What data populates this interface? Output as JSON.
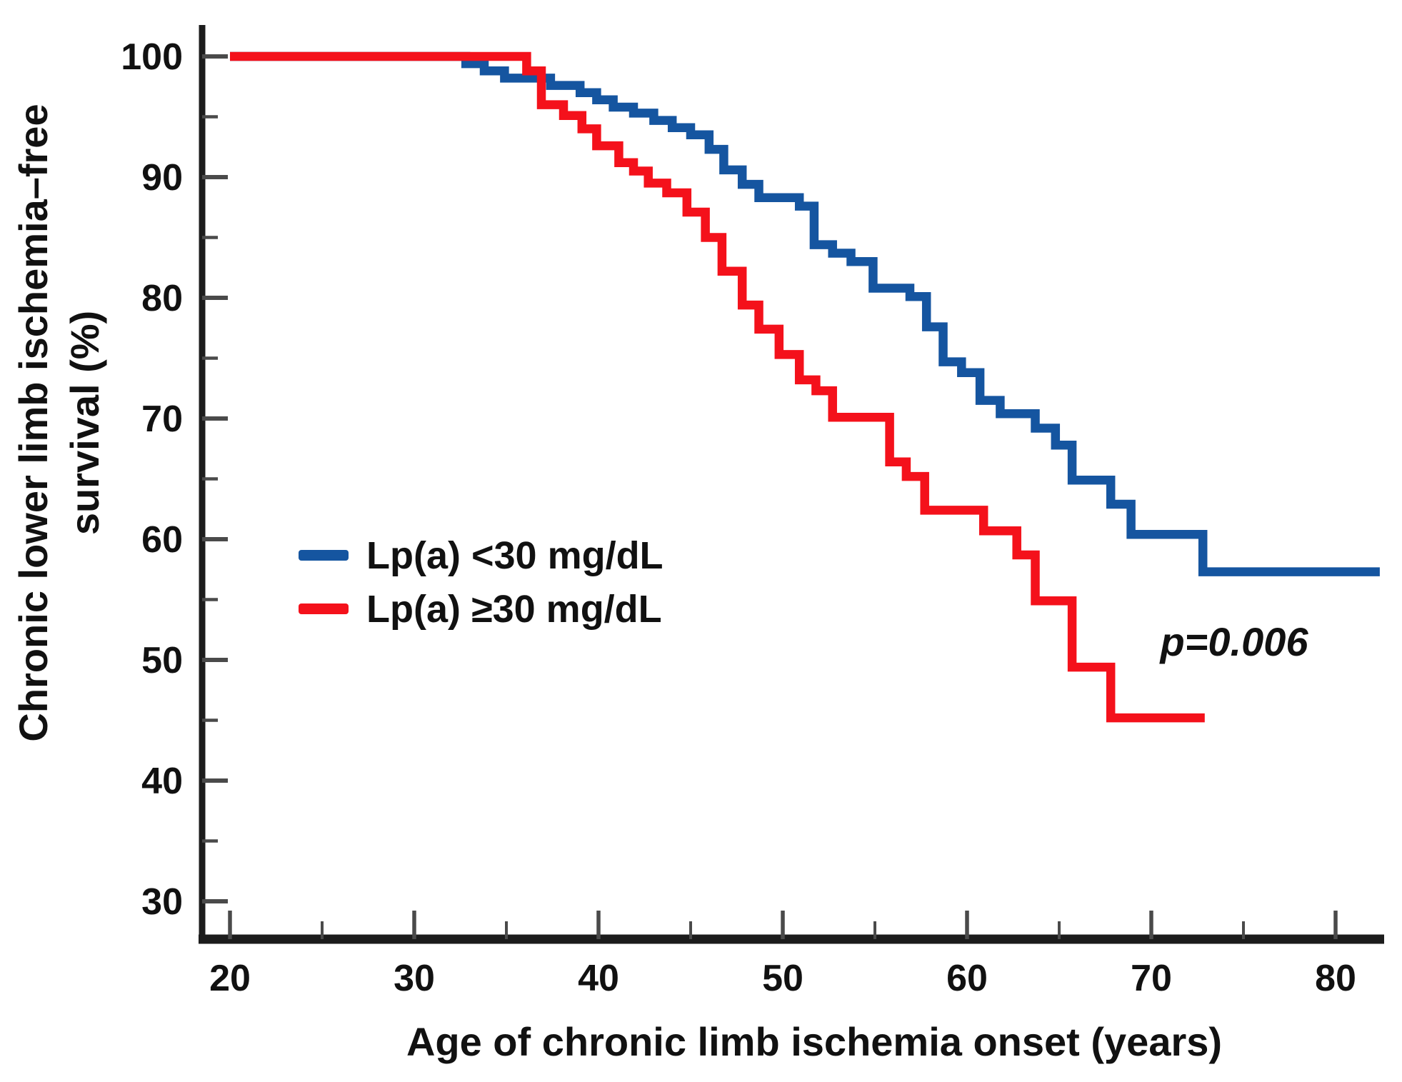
{
  "figure": {
    "y_axis_title_line1": "Chronic lower limb ischemia–free",
    "y_axis_title_line2": "survival (%)",
    "x_axis_title": "Age of chronic limb ischemia onset (years)",
    "p_value_label": "p=0.006"
  },
  "legend": {
    "position": "center-left",
    "items": [
      {
        "label": "Lp(a) <30 mg/dL",
        "color": "#1555A0"
      },
      {
        "label": "Lp(a) ≥30 mg/dL",
        "color": "#F4111B"
      }
    ]
  },
  "chart_data": {
    "type": "line",
    "subtype": "kaplan-meier-step",
    "title": "",
    "xlabel": "Age of chronic limb ischemia onset (years)",
    "ylabel": "Chronic lower limb ischemia–free survival (%)",
    "grid": false,
    "x_axis": {
      "range": [
        20,
        80
      ],
      "ticks_major": [
        20,
        30,
        40,
        50,
        60,
        70,
        80
      ],
      "ticks_minor": [
        25,
        35,
        45,
        55,
        65,
        75
      ]
    },
    "y_axis": {
      "range": [
        30,
        100
      ],
      "ticks_major": [
        100,
        90,
        80,
        70,
        60,
        50,
        40,
        30
      ],
      "ticks_minor": [
        95,
        85,
        75,
        65,
        55,
        45,
        35
      ]
    },
    "annotations": [
      {
        "text": "p=0.006",
        "x": 66,
        "y": 51
      }
    ],
    "series": [
      {
        "name": "Lp(a) <30 mg/dL",
        "color": "#1555A0",
        "end_age": 82.4,
        "points": [
          [
            20,
            100
          ],
          [
            32.8,
            99.4
          ],
          [
            33.8,
            98.8
          ],
          [
            34.9,
            98.2
          ],
          [
            37.4,
            97.6
          ],
          [
            39.0,
            97.0
          ],
          [
            39.9,
            96.4
          ],
          [
            40.8,
            95.8
          ],
          [
            41.9,
            95.3
          ],
          [
            43.0,
            94.7
          ],
          [
            44.0,
            94.1
          ],
          [
            45.0,
            93.5
          ],
          [
            46.0,
            92.3
          ],
          [
            46.8,
            90.6
          ],
          [
            47.8,
            89.4
          ],
          [
            48.7,
            88.3
          ],
          [
            50.9,
            87.6
          ],
          [
            51.7,
            84.4
          ],
          [
            52.7,
            83.7
          ],
          [
            53.7,
            83.0
          ],
          [
            54.9,
            80.8
          ],
          [
            56.9,
            80.1
          ],
          [
            57.8,
            77.6
          ],
          [
            58.7,
            74.7
          ],
          [
            59.7,
            73.8
          ],
          [
            60.7,
            71.5
          ],
          [
            61.8,
            70.4
          ],
          [
            63.7,
            69.2
          ],
          [
            64.8,
            67.8
          ],
          [
            65.7,
            64.9
          ],
          [
            67.8,
            62.9
          ],
          [
            68.9,
            60.4
          ],
          [
            72.8,
            57.3
          ]
        ]
      },
      {
        "name": "Lp(a) ≥30 mg/dL",
        "color": "#F4111B",
        "end_age": 72.9,
        "points": [
          [
            20,
            100
          ],
          [
            36.1,
            98.8
          ],
          [
            36.9,
            96.0
          ],
          [
            38.1,
            95.1
          ],
          [
            39.1,
            94.0
          ],
          [
            39.9,
            92.6
          ],
          [
            41.1,
            91.2
          ],
          [
            41.9,
            90.5
          ],
          [
            42.7,
            89.5
          ],
          [
            43.7,
            88.7
          ],
          [
            44.8,
            87.1
          ],
          [
            45.8,
            85.0
          ],
          [
            46.7,
            82.2
          ],
          [
            47.8,
            79.4
          ],
          [
            48.7,
            77.4
          ],
          [
            49.8,
            75.3
          ],
          [
            50.9,
            73.2
          ],
          [
            51.8,
            72.3
          ],
          [
            52.7,
            70.1
          ],
          [
            55.8,
            66.4
          ],
          [
            56.7,
            65.2
          ],
          [
            57.7,
            62.4
          ],
          [
            60.9,
            60.7
          ],
          [
            62.7,
            58.7
          ],
          [
            63.7,
            54.9
          ],
          [
            65.7,
            49.4
          ],
          [
            67.8,
            45.2
          ]
        ]
      }
    ]
  }
}
